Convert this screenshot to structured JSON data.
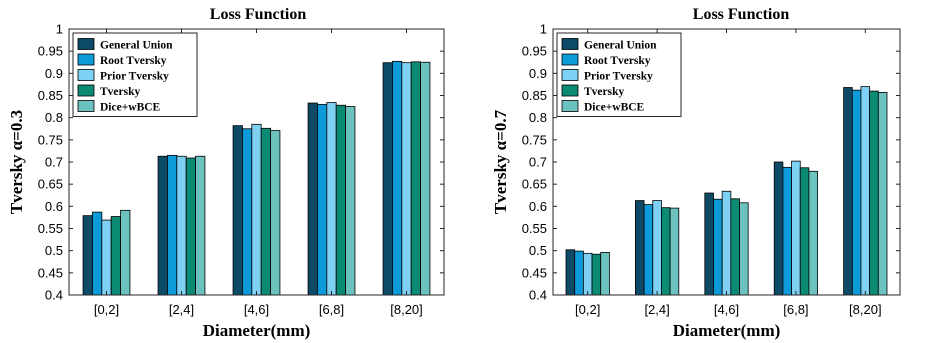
{
  "colors": {
    "series": [
      "#0d4a66",
      "#0c9ad8",
      "#7fd1f4",
      "#0b8a74",
      "#6cc2be"
    ],
    "axis": "#262626",
    "bar_stroke": "#000000"
  },
  "legend_labels": [
    "General Union",
    "Root Tversky",
    "Prior Tversky",
    "Tversky",
    "Dice+wBCE"
  ],
  "chart_data": [
    {
      "type": "bar",
      "title": "Loss Function",
      "xlabel": "Diameter(mm)",
      "ylabel": "Tversky α=0.3",
      "ylim": [
        0.4,
        1
      ],
      "yticks": [
        "0.4",
        "0.45",
        "0.5",
        "0.55",
        "0.6",
        "0.65",
        "0.7",
        "0.75",
        "0.8",
        "0.85",
        "0.9",
        "0.95",
        "1"
      ],
      "categories": [
        "[0,2]",
        "[2,4]",
        "[4,6]",
        "[6,8]",
        "[8,20]"
      ],
      "legend_position": "top-left",
      "grid": false,
      "series": [
        {
          "name": "General Union",
          "values": [
            0.579,
            0.713,
            0.782,
            0.833,
            0.924
          ]
        },
        {
          "name": "Root Tversky",
          "values": [
            0.587,
            0.715,
            0.775,
            0.83,
            0.927
          ]
        },
        {
          "name": "Prior Tversky",
          "values": [
            0.569,
            0.713,
            0.785,
            0.834,
            0.924
          ]
        },
        {
          "name": "Tversky",
          "values": [
            0.577,
            0.709,
            0.776,
            0.828,
            0.926
          ]
        },
        {
          "name": "Dice+wBCE",
          "values": [
            0.591,
            0.713,
            0.771,
            0.825,
            0.925
          ]
        }
      ]
    },
    {
      "type": "bar",
      "title": "Loss Function",
      "xlabel": "Diameter(mm)",
      "ylabel": "Tversky α=0.7",
      "ylim": [
        0.4,
        1
      ],
      "yticks": [
        "0.4",
        "0.45",
        "0.5",
        "0.55",
        "0.6",
        "0.65",
        "0.7",
        "0.75",
        "0.8",
        "0.85",
        "0.9",
        "0.95",
        "1"
      ],
      "categories": [
        "[0,2]",
        "[2,4]",
        "[4,6]",
        "[6,8]",
        "[8,20]"
      ],
      "legend_position": "top-left",
      "grid": false,
      "series": [
        {
          "name": "General Union",
          "values": [
            0.502,
            0.613,
            0.63,
            0.7,
            0.868
          ]
        },
        {
          "name": "Root Tversky",
          "values": [
            0.499,
            0.604,
            0.616,
            0.688,
            0.862
          ]
        },
        {
          "name": "Prior Tversky",
          "values": [
            0.494,
            0.613,
            0.634,
            0.702,
            0.87
          ]
        },
        {
          "name": "Tversky",
          "values": [
            0.492,
            0.597,
            0.617,
            0.687,
            0.86
          ]
        },
        {
          "name": "Dice+wBCE",
          "values": [
            0.496,
            0.596,
            0.608,
            0.679,
            0.857
          ]
        }
      ]
    }
  ]
}
